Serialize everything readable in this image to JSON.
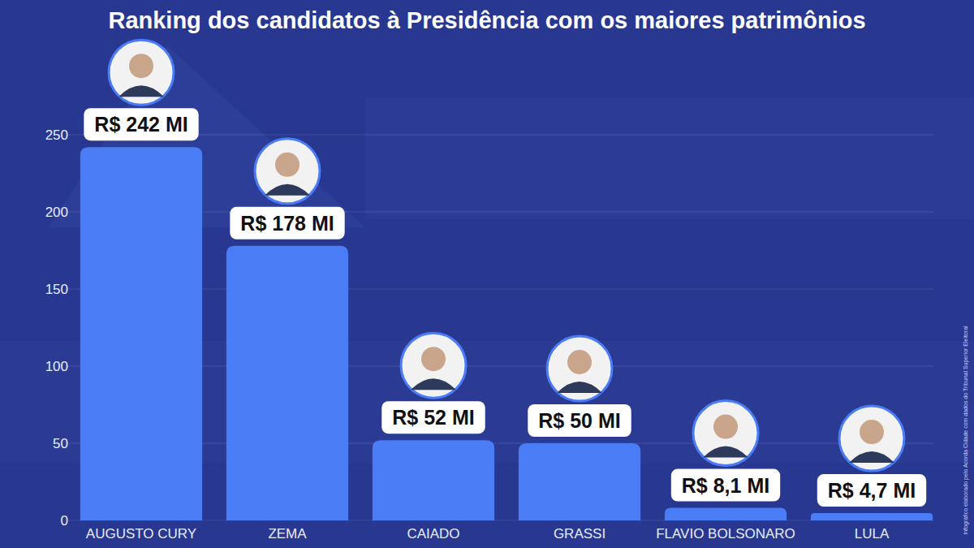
{
  "chart_data": {
    "type": "bar",
    "title": "Ranking dos candidatos à Presidência com os maiores patrimônios",
    "categories": [
      "AUGUSTO CURY",
      "ZEMA",
      "CAIADO",
      "GRASSI",
      "FLAVIO BOLSONARO",
      "LULA"
    ],
    "values": [
      242,
      178,
      52,
      50,
      8.1,
      4.7
    ],
    "value_labels": [
      "R$ 242 MI",
      "R$ 178 MI",
      "R$ 52 MI",
      "R$ 50 MI",
      "R$ 8,1 MI",
      "R$ 4,7 MI"
    ],
    "color": "#4a7cf6",
    "ylim": [
      0,
      250
    ],
    "yticks": [
      0,
      50,
      100,
      150,
      200,
      250
    ],
    "grid": true,
    "data_labels": true,
    "source": "Infográfico elaborado pelo Acorda Cidade com dados do Tribunal Superior Eleitoral"
  }
}
